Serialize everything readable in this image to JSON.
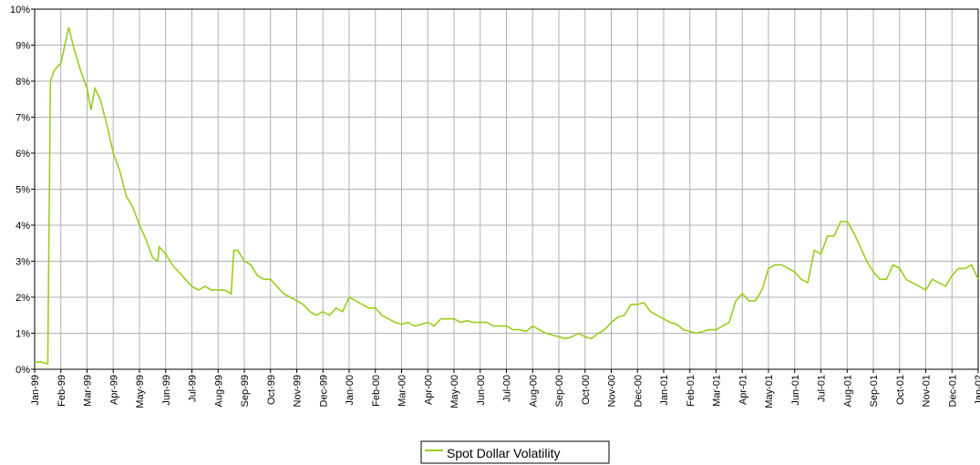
{
  "chart_data": {
    "type": "line",
    "x": [
      0,
      0.25,
      0.5,
      0.6,
      0.75,
      1,
      1.3,
      1.5,
      1.75,
      2,
      2.15,
      2.3,
      2.5,
      2.75,
      3,
      3.25,
      3.5,
      3.75,
      4,
      4.25,
      4.5,
      4.7,
      4.75,
      5,
      5.25,
      5.5,
      5.75,
      6,
      6.25,
      6.5,
      6.75,
      7,
      7.25,
      7.5,
      7.6,
      7.75,
      8,
      8.25,
      8.5,
      8.75,
      9,
      9.25,
      9.5,
      9.75,
      10,
      10.25,
      10.5,
      10.75,
      11,
      11.25,
      11.5,
      11.75,
      12,
      12.25,
      12.5,
      12.75,
      13,
      13.25,
      13.5,
      13.75,
      14,
      14.25,
      14.5,
      14.75,
      15,
      15.25,
      15.5,
      15.75,
      16,
      16.25,
      16.5,
      16.75,
      17,
      17.25,
      17.5,
      17.75,
      18,
      18.25,
      18.5,
      18.75,
      19,
      19.25,
      19.5,
      19.75,
      20,
      20.25,
      20.5,
      20.75,
      21,
      21.25,
      21.5,
      21.75,
      22,
      22.25,
      22.5,
      22.75,
      23,
      23.25,
      23.5,
      23.75,
      24,
      24.25,
      24.5,
      24.75,
      25,
      25.25,
      25.5,
      25.75,
      26,
      26.25,
      26.5,
      26.75,
      27,
      27.25,
      27.5,
      27.75,
      28,
      28.25,
      28.5,
      28.75,
      29,
      29.25,
      29.5,
      29.75,
      30,
      30.25,
      30.5,
      30.75,
      31,
      31.25,
      31.5,
      31.75,
      32,
      32.25,
      32.5,
      32.75,
      33,
      33.25,
      33.5,
      33.75,
      34,
      34.25,
      34.5,
      34.75,
      35,
      35.25,
      35.5,
      35.75,
      36
    ],
    "series": [
      {
        "name": "Spot Dollar Volatility",
        "color": "#9acd1e",
        "values": [
          0.2,
          0.2,
          0.15,
          8.0,
          8.3,
          8.5,
          9.5,
          8.9,
          8.3,
          7.8,
          7.2,
          7.8,
          7.5,
          6.8,
          6.0,
          5.5,
          4.8,
          4.5,
          4.0,
          3.6,
          3.1,
          3.0,
          3.4,
          3.2,
          2.9,
          2.7,
          2.5,
          2.3,
          2.2,
          2.3,
          2.2,
          2.2,
          2.2,
          2.1,
          3.3,
          3.3,
          3.0,
          2.9,
          2.6,
          2.5,
          2.5,
          2.3,
          2.1,
          2.0,
          1.9,
          1.8,
          1.6,
          1.5,
          1.6,
          1.5,
          1.7,
          1.6,
          2.0,
          1.9,
          1.8,
          1.7,
          1.7,
          1.5,
          1.4,
          1.3,
          1.25,
          1.3,
          1.2,
          1.25,
          1.3,
          1.2,
          1.4,
          1.4,
          1.4,
          1.3,
          1.35,
          1.3,
          1.3,
          1.3,
          1.2,
          1.2,
          1.2,
          1.1,
          1.1,
          1.05,
          1.2,
          1.1,
          1.0,
          0.95,
          0.9,
          0.85,
          0.9,
          1.0,
          0.9,
          0.85,
          1.0,
          1.1,
          1.3,
          1.45,
          1.5,
          1.8,
          1.8,
          1.85,
          1.6,
          1.5,
          1.4,
          1.3,
          1.25,
          1.1,
          1.05,
          1.0,
          1.05,
          1.1,
          1.1,
          1.2,
          1.3,
          1.9,
          2.1,
          1.9,
          1.9,
          2.2,
          2.8,
          2.9,
          2.9,
          2.8,
          2.7,
          2.5,
          2.4,
          3.3,
          3.2,
          3.7,
          3.7,
          4.1,
          4.1,
          3.8,
          3.4,
          3.0,
          2.7,
          2.5,
          2.5,
          2.9,
          2.8,
          2.5,
          2.4,
          2.3,
          2.2,
          2.5,
          2.4,
          2.3,
          2.6,
          2.8,
          2.8,
          2.9,
          2.5
        ]
      }
    ],
    "xlim": [
      0,
      36
    ],
    "xticks": [
      {
        "value": 0,
        "label": "Jan-99"
      },
      {
        "value": 1,
        "label": "Feb-99"
      },
      {
        "value": 2,
        "label": "Mar-99"
      },
      {
        "value": 3,
        "label": "Apr-99"
      },
      {
        "value": 4,
        "label": "May-99"
      },
      {
        "value": 5,
        "label": "Jun-99"
      },
      {
        "value": 6,
        "label": "Jul-99"
      },
      {
        "value": 7,
        "label": "Aug-99"
      },
      {
        "value": 8,
        "label": "Sep-99"
      },
      {
        "value": 9,
        "label": "Oct-99"
      },
      {
        "value": 10,
        "label": "Nov-99"
      },
      {
        "value": 11,
        "label": "Dec-99"
      },
      {
        "value": 12,
        "label": "Jan-00"
      },
      {
        "value": 13,
        "label": "Feb-00"
      },
      {
        "value": 14,
        "label": "Mar-00"
      },
      {
        "value": 15,
        "label": "Apr-00"
      },
      {
        "value": 16,
        "label": "May-00"
      },
      {
        "value": 17,
        "label": "Jun-00"
      },
      {
        "value": 18,
        "label": "Jul-00"
      },
      {
        "value": 19,
        "label": "Aug-00"
      },
      {
        "value": 20,
        "label": "Sep-00"
      },
      {
        "value": 21,
        "label": "Oct-00"
      },
      {
        "value": 22,
        "label": "Nov-00"
      },
      {
        "value": 23,
        "label": "Dec-00"
      },
      {
        "value": 24,
        "label": "Jan-01"
      },
      {
        "value": 25,
        "label": "Feb-01"
      },
      {
        "value": 26,
        "label": "Mar-01"
      },
      {
        "value": 27,
        "label": "Apr-01"
      },
      {
        "value": 28,
        "label": "May-01"
      },
      {
        "value": 29,
        "label": "Jun-01"
      },
      {
        "value": 30,
        "label": "Jul-01"
      },
      {
        "value": 31,
        "label": "Aug-01"
      },
      {
        "value": 32,
        "label": "Sep-01"
      },
      {
        "value": 33,
        "label": "Oct-01"
      },
      {
        "value": 34,
        "label": "Nov-01"
      },
      {
        "value": 35,
        "label": "Dec-01"
      },
      {
        "value": 36,
        "label": "Jan-02"
      }
    ],
    "ylim": [
      0,
      10
    ],
    "yticks": [
      {
        "value": 0,
        "label": "0%"
      },
      {
        "value": 1,
        "label": "1%"
      },
      {
        "value": 2,
        "label": "2%"
      },
      {
        "value": 3,
        "label": "3%"
      },
      {
        "value": 4,
        "label": "4%"
      },
      {
        "value": 5,
        "label": "5%"
      },
      {
        "value": 6,
        "label": "6%"
      },
      {
        "value": 7,
        "label": "7%"
      },
      {
        "value": 8,
        "label": "8%"
      },
      {
        "value": 9,
        "label": "9%"
      },
      {
        "value": 10,
        "label": "10%"
      }
    ],
    "grid": true,
    "legend": "bottom"
  }
}
